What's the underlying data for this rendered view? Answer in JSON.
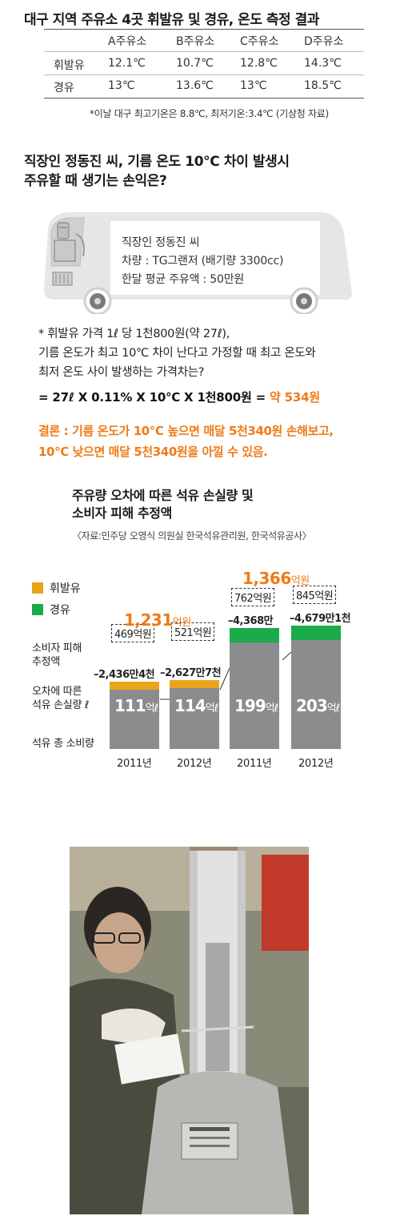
{
  "table": {
    "title": "대구 지역 주유소 4곳 휘발유 및 경유, 온도 측정 결과",
    "headers": [
      "",
      "A주유소",
      "B주유소",
      "C주유소",
      "D주유소"
    ],
    "rows": [
      [
        "휘발유",
        "12.1℃",
        "10.7℃",
        "12.8℃",
        "14.3℃"
      ],
      [
        "경유",
        "13℃",
        "13.6℃",
        "13℃",
        "18.5℃"
      ]
    ],
    "note": "*이날 대구 최고기온은 8.8℃, 최저기온:3.4℃ (기상청 자료)"
  },
  "question": {
    "line1": "직장인 정동진 씨, 기름 온도 10℃ 차이 발생시",
    "line2": "주유할 때 생기는 손익은?"
  },
  "truck_info": {
    "line1": "직장인 정동진 씨",
    "line2": "차량 : TG그랜저 (배기량 3300cc)",
    "line3": "한달 평균 주유액 : 50만원"
  },
  "calc": {
    "line1": "* 휘발유 가격 1ℓ 당 1천800원(약 27ℓ),",
    "line2": "기름 온도가 최고 10℃ 차이 난다고 가정할 때 최고 온도와",
    "line3": "최저 온도 사이 발생하는 가격차는?",
    "formula": "= 27ℓ X 0.11% X 10℃ X 1천800원 =",
    "result": "약 534원"
  },
  "conclusion": {
    "line1": "결론 : 기름 온도가 10℃ 높으면 매달 5천340원 손해보고,",
    "line2": "10℃ 낮으면 매달 5천340원을 아낄 수 있음."
  },
  "chart_data": {
    "type": "bar",
    "title_line1": "주유량 오차에 따른 석유 손실량 및",
    "title_line2": "소비자 피해 추정액",
    "source": "〈자료:민주당 오영식 의원실   한국석유관리원, 한국석유공사〉",
    "legend": [
      {
        "name": "휘발유",
        "color": "#e9a41c"
      },
      {
        "name": "경유",
        "color": "#1aab4b"
      }
    ],
    "row_labels": {
      "damage": [
        "소비자 피해",
        "추정액"
      ],
      "loss": [
        "오차에 따른",
        "석유 손실량 ℓ"
      ],
      "total": "석유 총 소비량"
    },
    "categories": [
      "2011년",
      "2012년",
      "2011년",
      "2012년"
    ],
    "fuel": [
      "휘발유",
      "휘발유",
      "경유",
      "경유"
    ],
    "consumption": [
      111,
      114,
      199,
      203
    ],
    "consumption_labels": [
      "111",
      "114",
      "199",
      "203"
    ],
    "consumption_unit": "억ℓ",
    "loss_labels": [
      "–2,436만4천",
      "–2,627만7천",
      "–4,368만",
      "–4,679만1천"
    ],
    "damage_labels": [
      "469억원",
      "521억원",
      "762억원",
      "845억원"
    ],
    "totals": [
      {
        "value": "1,231",
        "unit": "억원",
        "fuel": "휘발유"
      },
      {
        "value": "1,366",
        "unit": "억원",
        "fuel": "경유"
      }
    ],
    "colors": {
      "base": "#8c8c8e",
      "gasoline": "#e9a41c",
      "diesel": "#1aab4b",
      "accent": "#f07a17"
    }
  }
}
